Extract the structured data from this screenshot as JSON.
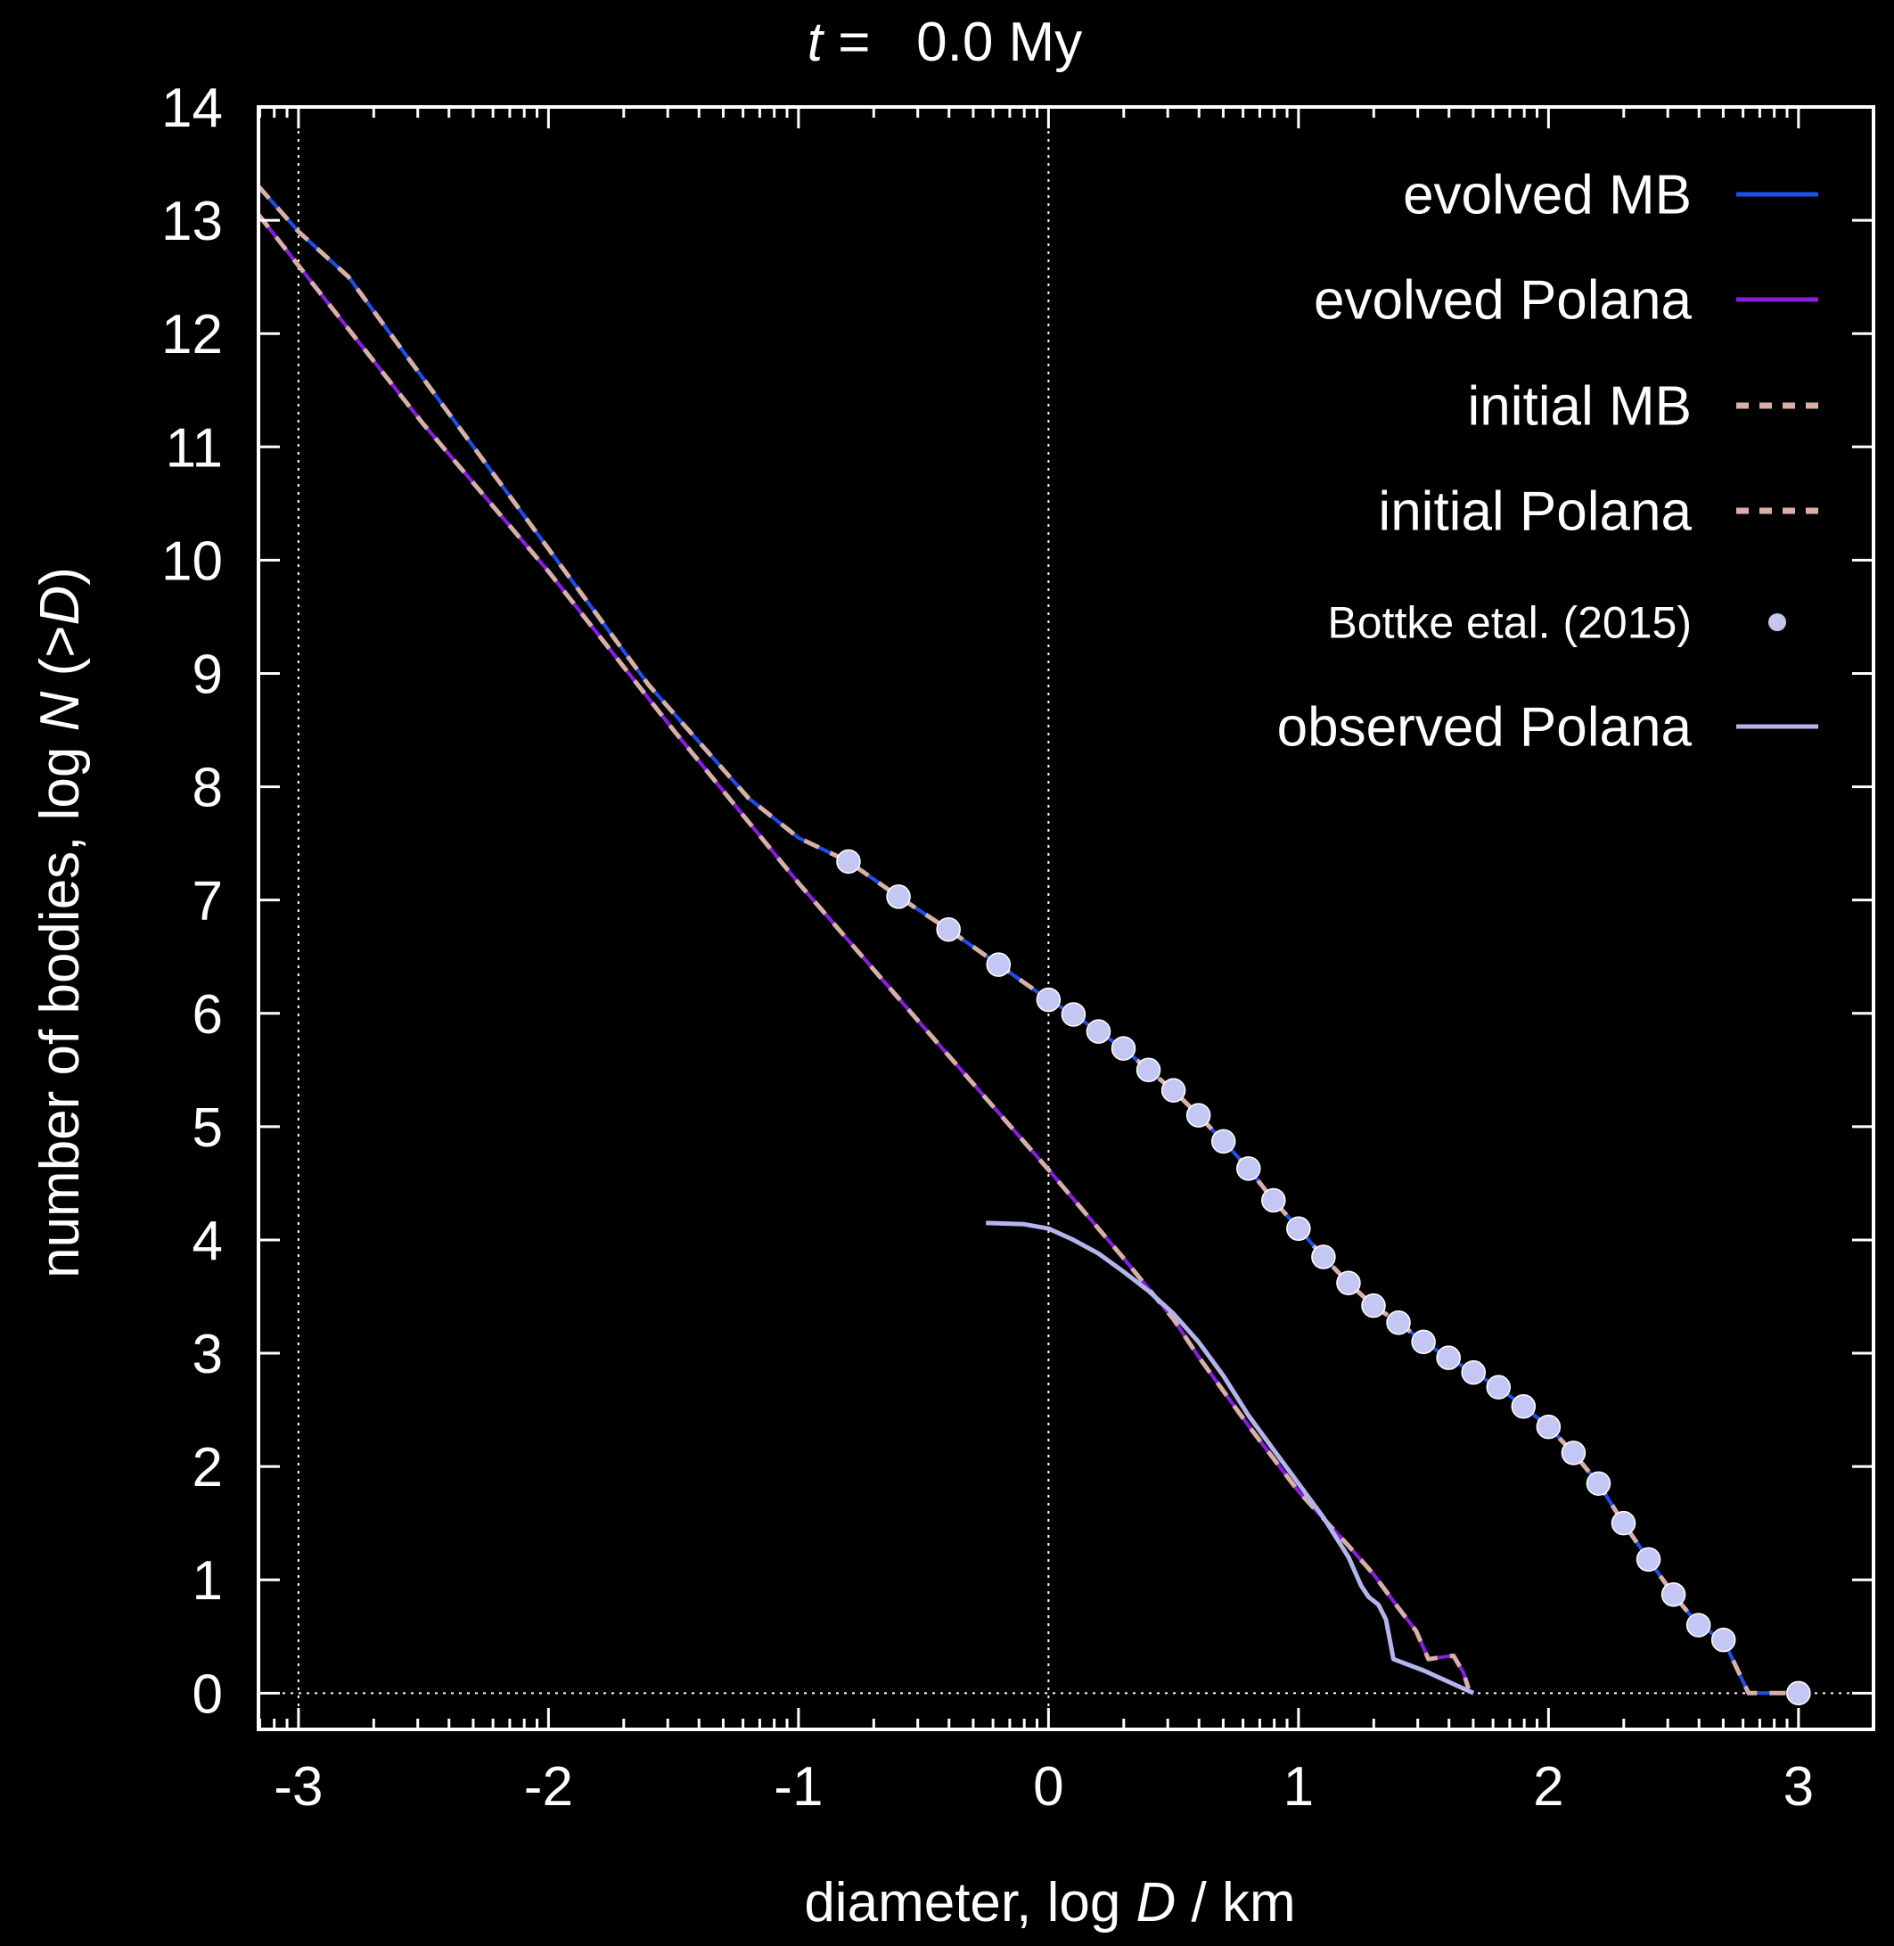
{
  "chart_data": {
    "type": "line",
    "title_var": "t",
    "title_rest": " =   0.0 My",
    "xlabel_pre": "diameter, log ",
    "xlabel_var": "D",
    "xlabel_post": " / km",
    "ylabel_pre": "number of bodies, log ",
    "ylabel_var": "N",
    "ylabel_mid": " (>",
    "ylabel_var2": "D",
    "ylabel_post": ")",
    "xlim": [
      -3.16,
      3.3
    ],
    "ylim": [
      -0.32,
      14.0
    ],
    "xticks": [
      -3,
      -2,
      -1,
      0,
      1,
      2,
      3
    ],
    "xtick_labels": [
      "-3",
      "-2",
      "-1",
      "0",
      "1",
      "2",
      "3"
    ],
    "yticks": [
      0,
      1,
      2,
      3,
      4,
      5,
      6,
      7,
      8,
      9,
      10,
      11,
      12,
      13,
      14
    ],
    "ytick_labels": [
      "0",
      "1",
      "2",
      "3",
      "4",
      "5",
      "6",
      "7",
      "8",
      "9",
      "10",
      "11",
      "12",
      "13",
      "14"
    ],
    "grid": "dotted lines at x=-3, x=0 and y=0",
    "legend_position": "top-right",
    "colors": {
      "background": "#000000",
      "axes": "#ffffff",
      "evolved_mb": "#1f4fe8",
      "evolved_polana": "#8a1ee0",
      "initial": "#d8b0a8",
      "bottke": "#c4c6f4",
      "observed": "#b4b4ee"
    },
    "series": [
      {
        "name": "evolved MB",
        "style": "solid",
        "color": "#1f4fe8",
        "x": [
          -3.16,
          -3.0,
          -2.8,
          -2.6,
          -2.4,
          -2.2,
          -2.0,
          -1.8,
          -1.6,
          -1.4,
          -1.2,
          -1.0,
          -0.8,
          -0.6,
          -0.4,
          -0.2,
          0.0,
          0.1,
          0.2,
          0.3,
          0.4,
          0.5,
          0.6,
          0.7,
          0.8,
          0.9,
          1.0,
          1.1,
          1.2,
          1.3,
          1.4,
          1.5,
          1.6,
          1.7,
          1.8,
          1.9,
          2.0,
          2.1,
          2.2,
          2.3,
          2.4,
          2.5,
          2.6,
          2.7,
          2.8,
          3.0
        ],
        "y": [
          13.3,
          12.9,
          12.5,
          11.9,
          11.3,
          10.7,
          10.1,
          9.5,
          8.9,
          8.4,
          7.9,
          7.55,
          7.34,
          7.03,
          6.74,
          6.43,
          6.12,
          5.99,
          5.84,
          5.69,
          5.5,
          5.32,
          5.1,
          4.87,
          4.63,
          4.35,
          4.1,
          3.85,
          3.62,
          3.42,
          3.27,
          3.1,
          2.96,
          2.83,
          2.7,
          2.53,
          2.35,
          2.12,
          1.85,
          1.5,
          1.18,
          0.87,
          0.6,
          0.47,
          0.0,
          0.0
        ]
      },
      {
        "name": "evolved Polana",
        "style": "solid",
        "color": "#8a1ee0",
        "x": [
          -3.16,
          -3.0,
          -2.5,
          -2.0,
          -1.5,
          -1.0,
          -0.5,
          0.0,
          0.3,
          0.5,
          0.6,
          0.8,
          1.0,
          1.2,
          1.3,
          1.4,
          1.47,
          1.52,
          1.58,
          1.62,
          1.66,
          1.68
        ],
        "y": [
          13.05,
          12.6,
          11.2,
          9.9,
          8.5,
          7.15,
          5.88,
          4.62,
          3.84,
          3.3,
          2.97,
          2.36,
          1.78,
          1.3,
          1.05,
          0.75,
          0.55,
          0.3,
          0.32,
          0.33,
          0.18,
          0.04
        ]
      },
      {
        "name": "initial MB",
        "style": "dashed",
        "color": "#d8b0a8",
        "x": [
          -3.16,
          -3.0,
          -2.8,
          -2.6,
          -2.4,
          -2.2,
          -2.0,
          -1.8,
          -1.6,
          -1.4,
          -1.2,
          -1.0,
          -0.8,
          -0.6,
          -0.4,
          -0.2,
          0.0,
          0.1,
          0.2,
          0.3,
          0.4,
          0.5,
          0.6,
          0.7,
          0.8,
          0.9,
          1.0,
          1.1,
          1.2,
          1.3,
          1.4,
          1.5,
          1.6,
          1.7,
          1.8,
          1.9,
          2.0,
          2.1,
          2.2,
          2.3,
          2.4,
          2.5,
          2.6,
          2.7,
          2.8,
          3.0
        ],
        "y": [
          13.3,
          12.9,
          12.5,
          11.9,
          11.3,
          10.7,
          10.1,
          9.5,
          8.9,
          8.4,
          7.9,
          7.55,
          7.34,
          7.03,
          6.74,
          6.43,
          6.12,
          5.99,
          5.84,
          5.69,
          5.5,
          5.32,
          5.1,
          4.87,
          4.63,
          4.35,
          4.1,
          3.85,
          3.62,
          3.42,
          3.27,
          3.1,
          2.96,
          2.83,
          2.7,
          2.53,
          2.35,
          2.12,
          1.85,
          1.5,
          1.18,
          0.87,
          0.6,
          0.47,
          0.0,
          0.0
        ]
      },
      {
        "name": "initial Polana",
        "style": "dashed",
        "color": "#d8b0a8",
        "x": [
          -3.16,
          -3.0,
          -2.5,
          -2.0,
          -1.5,
          -1.0,
          -0.5,
          0.0,
          0.3,
          0.5,
          0.6,
          0.8,
          1.0,
          1.2,
          1.3,
          1.4,
          1.47,
          1.52,
          1.58,
          1.62,
          1.66,
          1.68
        ],
        "y": [
          13.05,
          12.6,
          11.2,
          9.9,
          8.5,
          7.15,
          5.88,
          4.62,
          3.84,
          3.3,
          2.97,
          2.36,
          1.78,
          1.3,
          1.05,
          0.75,
          0.55,
          0.3,
          0.32,
          0.33,
          0.18,
          0.04
        ]
      },
      {
        "name": "Bottke etal. (2015)",
        "style": "points",
        "color": "#c4c6f4",
        "x": [
          -0.8,
          -0.6,
          -0.4,
          -0.2,
          0.0,
          0.1,
          0.2,
          0.3,
          0.4,
          0.5,
          0.6,
          0.7,
          0.8,
          0.9,
          1.0,
          1.1,
          1.2,
          1.3,
          1.4,
          1.5,
          1.6,
          1.7,
          1.8,
          1.9,
          2.0,
          2.1,
          2.2,
          2.3,
          2.4,
          2.5,
          2.6,
          2.7,
          3.0
        ],
        "y": [
          7.34,
          7.03,
          6.74,
          6.43,
          6.12,
          5.99,
          5.84,
          5.69,
          5.5,
          5.32,
          5.1,
          4.87,
          4.63,
          4.35,
          4.1,
          3.85,
          3.62,
          3.42,
          3.27,
          3.1,
          2.96,
          2.83,
          2.7,
          2.53,
          2.35,
          2.12,
          1.85,
          1.5,
          1.18,
          0.87,
          0.6,
          0.47,
          0.0
        ]
      },
      {
        "name": "observed Polana",
        "style": "solid",
        "color": "#b4b4ee",
        "x": [
          -0.25,
          -0.1,
          0.0,
          0.1,
          0.2,
          0.3,
          0.4,
          0.5,
          0.6,
          0.7,
          0.8,
          0.9,
          1.0,
          1.1,
          1.2,
          1.25,
          1.28,
          1.32,
          1.35,
          1.38,
          1.5,
          1.6,
          1.7
        ],
        "y": [
          4.15,
          4.14,
          4.1,
          4.0,
          3.88,
          3.72,
          3.55,
          3.35,
          3.1,
          2.8,
          2.45,
          2.15,
          1.85,
          1.55,
          1.2,
          0.95,
          0.85,
          0.78,
          0.65,
          0.3,
          0.2,
          0.1,
          0.0
        ]
      }
    ]
  }
}
